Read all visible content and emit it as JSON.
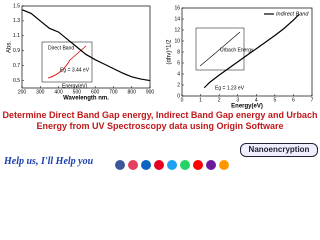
{
  "headline": "Determine Direct Band Gap energy, Indirect Band Gap energy and Urbach Energy from UV Spectroscopy data using Origin Software",
  "footer": {
    "help": "Help us, I'll Help you",
    "channel": "Nanoencryption"
  },
  "chart_data": [
    {
      "type": "line",
      "x_label": "Wavelength nm.",
      "y_label": "Abs.",
      "x": [
        200,
        250,
        300,
        350,
        400,
        450,
        500,
        550,
        600,
        650,
        700,
        750,
        800,
        850,
        900
      ],
      "series": [
        {
          "color": "#000000",
          "values": [
            1.45,
            1.4,
            1.3,
            1.2,
            1.15,
            1.05,
            0.95,
            0.85,
            0.78,
            0.72,
            0.66,
            0.6,
            0.55,
            0.52,
            0.5
          ]
        }
      ],
      "xlim": [
        200,
        900
      ],
      "xticks": [
        200,
        300,
        400,
        500,
        600,
        700,
        800,
        900
      ],
      "ylim": [
        0.4,
        1.5
      ],
      "yticks": [
        0.5,
        0.7,
        0.9,
        1.1,
        1.3,
        1.5
      ],
      "annotations": [
        "Direct Band",
        "Eg = 3.44 eV",
        "Energy(eV)"
      ]
    },
    {
      "type": "line",
      "x_label": "Energy(eV)",
      "y_label": "(αhν)^1/2",
      "x": [
        1.2,
        1.5,
        2,
        2.5,
        3,
        3.5,
        4,
        4.5,
        5,
        5.5,
        6,
        6.3
      ],
      "series": [
        {
          "name": "Indirect Band",
          "color": "#000000",
          "values": [
            1.5,
            2.5,
            3.8,
            5,
            6.2,
            7.4,
            8.6,
            9.8,
            11,
            12.3,
            13.8,
            14.8
          ]
        }
      ],
      "xlim": [
        0,
        7
      ],
      "xticks": [
        0,
        1,
        2,
        3,
        4,
        5,
        6,
        7
      ],
      "ylim": [
        0,
        16
      ],
      "yticks": [
        0,
        2,
        4,
        6,
        8,
        10,
        12,
        14,
        16
      ],
      "annotations": [
        "Urbach Energy",
        "Eg = 1.23 eV"
      ]
    }
  ]
}
